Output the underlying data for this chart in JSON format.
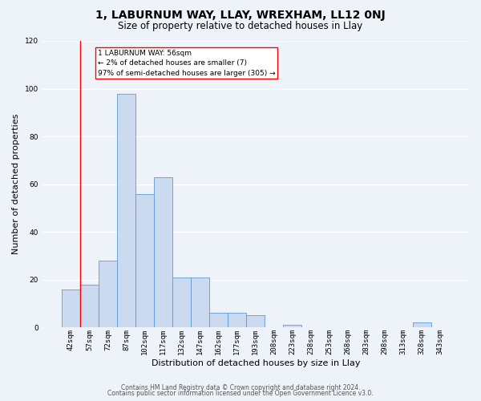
{
  "title": "1, LABURNUM WAY, LLAY, WREXHAM, LL12 0NJ",
  "subtitle": "Size of property relative to detached houses in Llay",
  "xlabel": "Distribution of detached houses by size in Llay",
  "ylabel": "Number of detached properties",
  "bar_labels": [
    "42sqm",
    "57sqm",
    "72sqm",
    "87sqm",
    "102sqm",
    "117sqm",
    "132sqm",
    "147sqm",
    "162sqm",
    "177sqm",
    "193sqm",
    "208sqm",
    "223sqm",
    "238sqm",
    "253sqm",
    "268sqm",
    "283sqm",
    "298sqm",
    "313sqm",
    "328sqm",
    "343sqm"
  ],
  "bar_values": [
    16,
    18,
    28,
    98,
    56,
    63,
    21,
    21,
    6,
    6,
    5,
    0,
    1,
    0,
    0,
    0,
    0,
    0,
    0,
    2,
    0
  ],
  "bar_color": "#ccdaf0",
  "bar_edge_color": "#5b9bd5",
  "ylim": [
    0,
    120
  ],
  "yticks": [
    0,
    20,
    40,
    60,
    80,
    100,
    120
  ],
  "property_line_label": "1 LABURNUM WAY: 56sqm",
  "annotation_line1": "← 2% of detached houses are smaller (7)",
  "annotation_line2": "97% of semi-detached houses are larger (305) →",
  "footer_line1": "Contains HM Land Registry data © Crown copyright and database right 2024.",
  "footer_line2": "Contains public sector information licensed under the Open Government Licence v3.0.",
  "bg_color": "#eef2f9",
  "grid_color": "#ffffff",
  "title_fontsize": 10,
  "subtitle_fontsize": 8.5,
  "axis_label_fontsize": 8,
  "tick_fontsize": 6.5,
  "footer_fontsize": 5.5
}
